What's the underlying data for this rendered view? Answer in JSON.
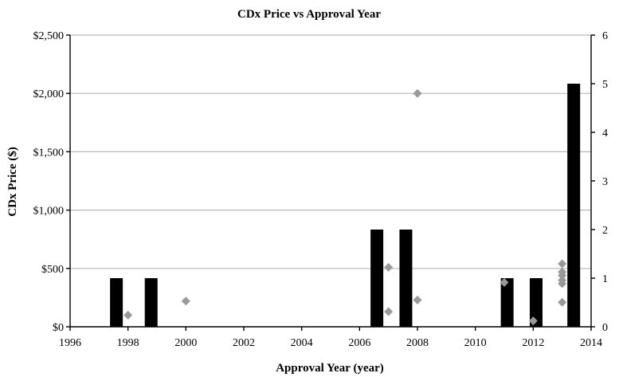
{
  "chart_data": {
    "type": "bar",
    "title": "CDx Price vs Approval Year",
    "xlabel": "Approval Year (year)",
    "ylabel": "CDx Price ($)",
    "xlim": [
      1996,
      2014
    ],
    "x_ticks": [
      1996,
      1998,
      2000,
      2002,
      2004,
      2006,
      2008,
      2010,
      2012,
      2014
    ],
    "x_tick_labels": [
      "1996",
      "1998",
      "2000",
      "2002",
      "2004",
      "2006",
      "2008",
      "2010",
      "2012",
      "2014"
    ],
    "ylim": [
      0,
      2500
    ],
    "y_ticks": [
      0,
      500,
      1000,
      1500,
      2000,
      2500
    ],
    "y_tick_labels": [
      "$0",
      "$500",
      "$1,000",
      "$1,500",
      "$2,000",
      "$2,500"
    ],
    "y2lim": [
      0,
      6
    ],
    "y2_ticks": [
      0,
      1,
      2,
      3,
      4,
      5,
      6
    ],
    "y2_tick_labels": [
      "0",
      "1",
      "2",
      "3",
      "4",
      "5",
      "6"
    ],
    "grid": true,
    "bar_series": {
      "axis": "secondary",
      "color": "#000000",
      "x": [
        1997.6,
        1998.8,
        2006.6,
        2007.6,
        2011.1,
        2012.1,
        2013.4
      ],
      "values": [
        1,
        1,
        2,
        2,
        1,
        1,
        5
      ]
    },
    "scatter_series": {
      "axis": "primary",
      "color": "#999999",
      "points": [
        {
          "x": 1998,
          "y": 100
        },
        {
          "x": 2000,
          "y": 220
        },
        {
          "x": 2007,
          "y": 510
        },
        {
          "x": 2007,
          "y": 130
        },
        {
          "x": 2008,
          "y": 2000
        },
        {
          "x": 2008,
          "y": 230
        },
        {
          "x": 2011,
          "y": 380
        },
        {
          "x": 2012,
          "y": 50
        },
        {
          "x": 2013,
          "y": 540
        },
        {
          "x": 2013,
          "y": 470
        },
        {
          "x": 2013,
          "y": 440
        },
        {
          "x": 2013,
          "y": 400
        },
        {
          "x": 2013,
          "y": 370
        },
        {
          "x": 2013,
          "y": 210
        }
      ]
    }
  }
}
